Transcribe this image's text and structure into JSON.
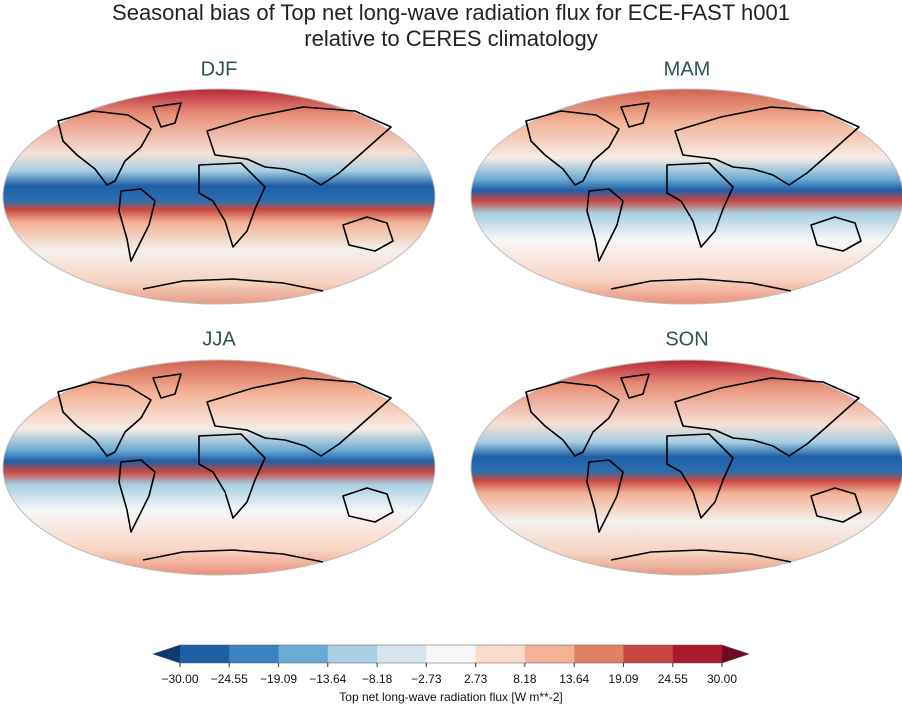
{
  "figure": {
    "title_lines": [
      "Seasonal bias of Top net long-wave radiation flux for ECE-FAST h001",
      "relative to CERES climatology"
    ],
    "panels": [
      {
        "title": "DJF"
      },
      {
        "title": "MAM"
      },
      {
        "title": "JJA"
      },
      {
        "title": "SON"
      }
    ],
    "colorbar": {
      "label": "Top net long-wave radiation flux [W m**-2]",
      "ticks": [
        {
          "value": -30,
          "label": "−30.00"
        },
        {
          "value": -24.55,
          "label": "−24.55"
        },
        {
          "value": -19.09,
          "label": "−19.09"
        },
        {
          "value": -13.64,
          "label": "−13.64"
        },
        {
          "value": -8.18,
          "label": "−8.18"
        },
        {
          "value": -2.73,
          "label": "−2.73"
        },
        {
          "value": 2.73,
          "label": "2.73"
        },
        {
          "value": 8.18,
          "label": "8.18"
        },
        {
          "value": 13.64,
          "label": "13.64"
        },
        {
          "value": 19.09,
          "label": "19.09"
        },
        {
          "value": 24.55,
          "label": "24.55"
        },
        {
          "value": 30,
          "label": "30.00"
        }
      ],
      "colors": [
        "#1f5fa6",
        "#3a82c0",
        "#6aaad4",
        "#a8cfe4",
        "#d5e6f1",
        "#f6f6f6",
        "#fbdccc",
        "#f3b195",
        "#e27f65",
        "#c94741",
        "#aa1a2d"
      ],
      "under_color": "#0a3a70",
      "over_color": "#6e0a22"
    }
  }
}
